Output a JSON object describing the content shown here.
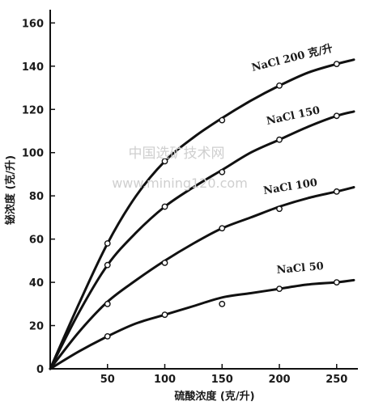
{
  "chart_data": {
    "type": "line",
    "title": "",
    "xlabel": "硫酸浓度 (克/升)",
    "ylabel": "铋浓度 (克/升)",
    "xlim": [
      0,
      265
    ],
    "ylim": [
      0,
      165
    ],
    "xticks": [
      50,
      100,
      150,
      200,
      250
    ],
    "yticks": [
      0,
      20,
      40,
      60,
      80,
      100,
      120,
      140,
      160
    ],
    "grid": false,
    "legend": "inline-labels",
    "series": [
      {
        "name": "NaCl 200 克/升",
        "points": [
          [
            50,
            58
          ],
          [
            100,
            96
          ],
          [
            150,
            115
          ],
          [
            200,
            131
          ],
          [
            250,
            141
          ]
        ],
        "curve": [
          [
            0,
            0
          ],
          [
            25,
            30
          ],
          [
            50,
            58
          ],
          [
            75,
            80
          ],
          [
            100,
            96
          ],
          [
            125,
            107
          ],
          [
            150,
            116
          ],
          [
            175,
            124
          ],
          [
            200,
            131
          ],
          [
            225,
            137
          ],
          [
            250,
            141
          ],
          [
            265,
            143
          ]
        ]
      },
      {
        "name": "NaCl 150",
        "points": [
          [
            50,
            48
          ],
          [
            100,
            75
          ],
          [
            150,
            91
          ],
          [
            200,
            106
          ],
          [
            250,
            117
          ]
        ],
        "curve": [
          [
            0,
            0
          ],
          [
            25,
            26
          ],
          [
            50,
            48
          ],
          [
            75,
            63
          ],
          [
            100,
            75
          ],
          [
            125,
            84
          ],
          [
            150,
            92
          ],
          [
            175,
            100
          ],
          [
            200,
            106
          ],
          [
            225,
            112
          ],
          [
            250,
            117
          ],
          [
            265,
            119
          ]
        ]
      },
      {
        "name": "NaCl 100",
        "points": [
          [
            50,
            30
          ],
          [
            100,
            49
          ],
          [
            150,
            65
          ],
          [
            200,
            74
          ],
          [
            250,
            82
          ]
        ],
        "curve": [
          [
            0,
            0
          ],
          [
            25,
            17
          ],
          [
            50,
            31
          ],
          [
            75,
            41
          ],
          [
            100,
            50
          ],
          [
            125,
            58
          ],
          [
            150,
            65
          ],
          [
            175,
            70
          ],
          [
            200,
            75
          ],
          [
            225,
            79
          ],
          [
            250,
            82
          ],
          [
            265,
            84
          ]
        ]
      },
      {
        "name": "NaCl 50",
        "points": [
          [
            50,
            15
          ],
          [
            100,
            25
          ],
          [
            150,
            30
          ],
          [
            200,
            37
          ],
          [
            250,
            40
          ]
        ],
        "curve": [
          [
            0,
            0
          ],
          [
            25,
            8
          ],
          [
            50,
            15
          ],
          [
            75,
            21
          ],
          [
            100,
            25
          ],
          [
            125,
            29
          ],
          [
            150,
            33
          ],
          [
            175,
            35
          ],
          [
            200,
            37
          ],
          [
            225,
            39
          ],
          [
            250,
            40
          ],
          [
            265,
            41
          ]
        ]
      }
    ]
  },
  "watermark": {
    "line1": "中国选矿技术网",
    "line2": "www.mining120.com"
  }
}
